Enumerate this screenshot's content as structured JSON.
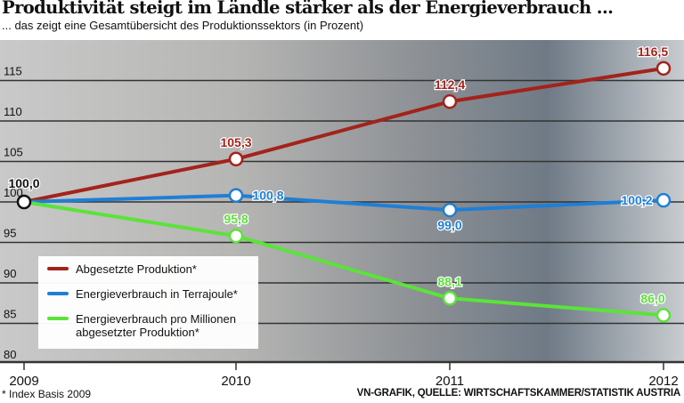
{
  "title": "Produktivität steigt im Ländle stärker als der Energieverbrauch ...",
  "subtitle": "... das zeigt eine Gesamtübersicht des Produktionssektors (in Prozent)",
  "footnote": "* Index Basis 2009",
  "source": "VN-GRAFIK, QUELLE: WIRTSCHAFTSKAMMER/STATISTIK AUSTRIA",
  "chart_data": {
    "type": "line",
    "title": "Produktivität steigt im Ländle stärker als der Energieverbrauch ...",
    "subtitle": "... das zeigt eine Gesamtübersicht des Produktionssektors (in Prozent)",
    "categories": [
      "2009",
      "2010",
      "2011",
      "2012"
    ],
    "ylim": [
      80,
      117
    ],
    "yticks": [
      "80",
      "85",
      "90",
      "95",
      "100",
      "105",
      "110",
      "115"
    ],
    "grid": true,
    "legend_position": "bottom-left",
    "series": [
      {
        "name": "Abgesetzte Produktion*",
        "color": "#a3231b",
        "values": [
          100.0,
          105.3,
          112.4,
          116.5
        ],
        "labels": [
          "100,0",
          "105,3",
          "112,4",
          "116,5"
        ]
      },
      {
        "name": "Energieverbrauch in Terrajoule*",
        "color": "#1e7fd6",
        "values": [
          100.0,
          100.8,
          99.0,
          100.2
        ],
        "labels": [
          "",
          "100,8",
          "99,0",
          "100,2"
        ]
      },
      {
        "name": "Energieverbrauch pro Millionen abgesetzter Produktion*",
        "name_line1": "Energieverbrauch pro Millionen",
        "name_line2": "abgesetzter Produktion*",
        "color": "#5be33a",
        "values": [
          100.0,
          95.8,
          88.1,
          86.0
        ],
        "labels": [
          "",
          "95,8",
          "88,1",
          "86,0"
        ]
      }
    ]
  }
}
